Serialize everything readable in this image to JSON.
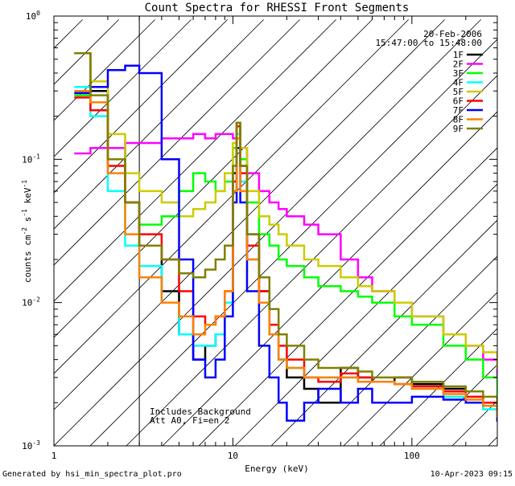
{
  "chart_data": {
    "type": "line",
    "title": "Count Spectra for RHESSI Front Segments",
    "xlabel": "Energy (keV)",
    "ylabel_parts": {
      "base": "counts cm",
      "exp1": "-2",
      "mid": " s",
      "exp2": "-1",
      "tail": " keV",
      "exp3": "-1"
    },
    "xscale": "log",
    "yscale": "log",
    "xlim": [
      1,
      300
    ],
    "ylim": [
      0.001,
      1.0
    ],
    "x_ticks": [
      {
        "v": 1,
        "label": "1"
      },
      {
        "v": 10,
        "label": "10"
      },
      {
        "v": 100,
        "label": "100"
      }
    ],
    "y_ticks": [
      {
        "v": 1.0,
        "base": "10",
        "exp": "0"
      },
      {
        "v": 0.1,
        "base": "10",
        "exp": "-1"
      },
      {
        "v": 0.01,
        "base": "10",
        "exp": "-2"
      },
      {
        "v": 0.001,
        "base": "10",
        "exp": "-3"
      }
    ],
    "date_label": "20-Feb-2006",
    "time_label": "15:47:00 to 15:48:00",
    "notes": [
      "Includes Background",
      "Att A0, Fi=en 2"
    ],
    "hatched_region_max_energy": 3,
    "series": [
      {
        "name": "1F",
        "color": "#000000",
        "x": [
          1.3,
          1.6,
          2.0,
          2.5,
          3,
          4,
          5,
          6,
          7,
          8,
          9,
          10,
          10.5,
          11,
          12,
          14,
          16,
          18,
          20,
          25,
          30,
          40,
          50,
          60,
          80,
          100,
          150,
          200,
          250,
          300
        ],
        "values": [
          0.55,
          0.3,
          0.12,
          0.05,
          0.025,
          0.012,
          0.006,
          0.004,
          0.005,
          0.006,
          0.01,
          0.08,
          0.18,
          0.09,
          0.03,
          0.012,
          0.006,
          0.004,
          0.003,
          0.0025,
          0.002,
          0.0035,
          0.003,
          0.0028,
          0.003,
          0.0027,
          0.0025,
          0.002,
          0.002,
          0.0015
        ]
      },
      {
        "name": "2F",
        "color": "#ff00ff",
        "x": [
          1.3,
          1.6,
          2.0,
          2.5,
          3,
          4,
          5,
          6,
          7,
          8,
          9,
          10,
          10.5,
          11,
          12,
          14,
          16,
          18,
          20,
          25,
          30,
          40,
          50,
          60,
          80,
          100,
          150,
          200,
          250,
          300
        ],
        "values": [
          0.11,
          0.12,
          0.12,
          0.13,
          0.13,
          0.14,
          0.14,
          0.15,
          0.14,
          0.15,
          0.15,
          0.14,
          0.18,
          0.12,
          0.08,
          0.06,
          0.05,
          0.045,
          0.04,
          0.035,
          0.03,
          0.02,
          0.015,
          0.012,
          0.01,
          0.008,
          0.006,
          0.005,
          0.004,
          0.003
        ]
      },
      {
        "name": "3F",
        "color": "#00ff00",
        "x": [
          1.3,
          1.6,
          2.0,
          2.5,
          3,
          4,
          5,
          6,
          7,
          8,
          9,
          10,
          10.5,
          11,
          12,
          14,
          16,
          18,
          20,
          25,
          30,
          40,
          50,
          60,
          80,
          100,
          150,
          200,
          250,
          300
        ],
        "values": [
          0.28,
          0.22,
          0.1,
          0.05,
          0.035,
          0.04,
          0.06,
          0.08,
          0.07,
          0.06,
          0.07,
          0.12,
          0.18,
          0.1,
          0.05,
          0.03,
          0.025,
          0.02,
          0.018,
          0.015,
          0.013,
          0.012,
          0.011,
          0.01,
          0.008,
          0.007,
          0.005,
          0.004,
          0.003,
          0.002
        ]
      },
      {
        "name": "4F",
        "color": "#00ffff",
        "x": [
          1.3,
          1.6,
          2.0,
          2.5,
          3,
          4,
          5,
          6,
          7,
          8,
          9,
          10,
          10.5,
          11,
          12,
          14,
          16,
          18,
          20,
          25,
          30,
          40,
          50,
          60,
          80,
          100,
          150,
          200,
          250,
          300
        ],
        "values": [
          0.32,
          0.2,
          0.06,
          0.025,
          0.018,
          0.01,
          0.006,
          0.005,
          0.005,
          0.006,
          0.01,
          0.06,
          0.15,
          0.07,
          0.02,
          0.01,
          0.006,
          0.004,
          0.0035,
          0.003,
          0.003,
          0.003,
          0.0028,
          0.0028,
          0.0027,
          0.0025,
          0.0022,
          0.002,
          0.0018,
          0.0015
        ]
      },
      {
        "name": "5F",
        "color": "#cccc00",
        "x": [
          1.3,
          1.6,
          2.0,
          2.5,
          3,
          4,
          5,
          6,
          7,
          8,
          9,
          10,
          10.5,
          11,
          12,
          14,
          16,
          18,
          20,
          25,
          30,
          40,
          50,
          60,
          80,
          100,
          150,
          200,
          250,
          300
        ],
        "values": [
          0.55,
          0.35,
          0.15,
          0.08,
          0.06,
          0.05,
          0.04,
          0.045,
          0.05,
          0.06,
          0.08,
          0.13,
          0.18,
          0.12,
          0.06,
          0.04,
          0.035,
          0.03,
          0.025,
          0.02,
          0.018,
          0.015,
          0.013,
          0.012,
          0.01,
          0.008,
          0.006,
          0.005,
          0.0045,
          0.0035
        ]
      },
      {
        "name": "6F",
        "color": "#ff0000",
        "x": [
          1.3,
          1.6,
          2.0,
          2.5,
          3,
          4,
          5,
          6,
          7,
          8,
          9,
          10,
          10.5,
          11,
          12,
          14,
          16,
          18,
          20,
          25,
          30,
          40,
          50,
          60,
          80,
          100,
          150,
          200,
          250,
          300
        ],
        "values": [
          0.27,
          0.22,
          0.09,
          0.05,
          0.03,
          0.02,
          0.012,
          0.008,
          0.007,
          0.008,
          0.012,
          0.07,
          0.17,
          0.08,
          0.025,
          0.012,
          0.007,
          0.005,
          0.004,
          0.003,
          0.0028,
          0.0032,
          0.003,
          0.0028,
          0.0027,
          0.0026,
          0.0024,
          0.0022,
          0.002,
          0.0016
        ]
      },
      {
        "name": "7F",
        "color": "#0000ff",
        "x": [
          1.3,
          1.6,
          2.0,
          2.5,
          3,
          4,
          5,
          6,
          7,
          8,
          9,
          10,
          10.5,
          11,
          12,
          14,
          16,
          18,
          20,
          25,
          30,
          40,
          50,
          60,
          80,
          100,
          150,
          200,
          250,
          300
        ],
        "values": [
          0.29,
          0.32,
          0.42,
          0.45,
          0.4,
          0.1,
          0.02,
          0.004,
          0.003,
          0.004,
          0.008,
          0.05,
          0.12,
          0.05,
          0.012,
          0.005,
          0.003,
          0.002,
          0.0015,
          0.002,
          0.0025,
          0.002,
          0.0025,
          0.002,
          0.002,
          0.0022,
          0.0021,
          0.002,
          0.0019,
          0.0015
        ]
      },
      {
        "name": "8F",
        "color": "#ff8000",
        "x": [
          1.3,
          1.6,
          2.0,
          2.5,
          3,
          4,
          5,
          6,
          7,
          8,
          9,
          10,
          10.5,
          11,
          12,
          14,
          16,
          18,
          20,
          25,
          30,
          40,
          50,
          60,
          80,
          100,
          150,
          200,
          250,
          300
        ],
        "values": [
          0.3,
          0.25,
          0.08,
          0.03,
          0.015,
          0.01,
          0.008,
          0.006,
          0.007,
          0.008,
          0.012,
          0.06,
          0.14,
          0.06,
          0.02,
          0.01,
          0.006,
          0.004,
          0.0035,
          0.003,
          0.003,
          0.003,
          0.0028,
          0.0028,
          0.0027,
          0.0025,
          0.0023,
          0.0021,
          0.0019,
          0.0016
        ]
      },
      {
        "name": "9F",
        "color": "#808000",
        "x": [
          1.3,
          1.6,
          2.0,
          2.5,
          3,
          4,
          5,
          6,
          7,
          8,
          9,
          10,
          10.5,
          11,
          12,
          14,
          16,
          18,
          20,
          25,
          30,
          40,
          50,
          60,
          80,
          100,
          150,
          200,
          250,
          300
        ],
        "values": [
          0.55,
          0.28,
          0.1,
          0.05,
          0.025,
          0.02,
          0.016,
          0.015,
          0.017,
          0.02,
          0.025,
          0.09,
          0.18,
          0.09,
          0.03,
          0.015,
          0.009,
          0.006,
          0.005,
          0.004,
          0.0035,
          0.0035,
          0.0033,
          0.003,
          0.003,
          0.0028,
          0.0026,
          0.0024,
          0.0022,
          0.0018
        ]
      }
    ]
  },
  "footer": {
    "generated_by": "Generated by hsi_min_spectra_plot.pro",
    "timestamp": "10-Apr-2023 09:15"
  }
}
